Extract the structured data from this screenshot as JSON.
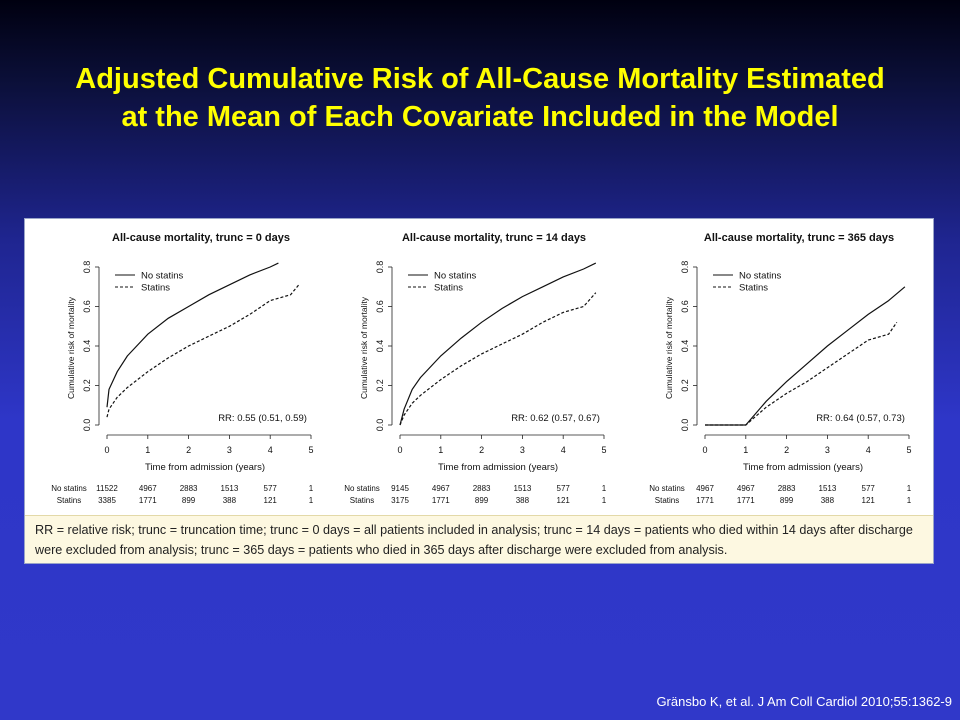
{
  "slide": {
    "title_line1": "Adjusted Cumulative Risk of All-Cause Mortality Estimated",
    "title_line2": "at the Mean of Each Covariate Included in the Model",
    "caption": "RR = relative risk; trunc = truncation time; trunc = 0 days = all patients included in analysis; trunc = 14 days = patients who died within 14 days after discharge were excluded from analysis; trunc = 365 days = patients who died in 365 days after discharge were excluded from analysis.",
    "citation": "Gränsbo K, et al. J Am Coll Cardiol 2010;55:1362-9"
  },
  "colors": {
    "title": "#ffff00",
    "caption_bg": "#fdf8e1",
    "background_top": "#000010",
    "background_bottom": "#3038c9"
  },
  "chart_data": [
    {
      "type": "line",
      "title": "All-cause mortality, trunc = 0 days",
      "xlabel": "Time from admission (years)",
      "ylabel": "Cumulative risk of mortality",
      "xlim": [
        0,
        5
      ],
      "ylim": [
        0,
        0.8
      ],
      "xticks": [
        "0",
        "1",
        "2",
        "3",
        "4",
        "5"
      ],
      "yticks": [
        "0.0",
        "0.2",
        "0.4",
        "0.6",
        "0.8"
      ],
      "legend": "top-left",
      "annotation": "RR: 0.55 (0.51, 0.59)",
      "series": [
        {
          "name": "No statins",
          "style": "solid",
          "x": [
            0,
            0.05,
            0.25,
            0.5,
            1,
            1.5,
            2,
            2.5,
            3,
            3.5,
            4,
            4.2
          ],
          "y": [
            0.09,
            0.18,
            0.27,
            0.35,
            0.46,
            0.54,
            0.6,
            0.66,
            0.71,
            0.76,
            0.8,
            0.82
          ]
        },
        {
          "name": "Statins",
          "style": "dashed",
          "x": [
            0,
            0.05,
            0.25,
            0.5,
            1,
            1.5,
            2,
            2.5,
            3,
            3.5,
            4,
            4.5,
            4.7
          ],
          "y": [
            0.04,
            0.08,
            0.14,
            0.19,
            0.27,
            0.34,
            0.4,
            0.45,
            0.5,
            0.56,
            0.63,
            0.66,
            0.71
          ]
        }
      ],
      "risk_table": {
        "rows": [
          {
            "label": "No statins",
            "values": [
              "11522",
              "4967",
              "2883",
              "1513",
              "577",
              "1"
            ]
          },
          {
            "label": "Statins",
            "values": [
              "3385",
              "1771",
              "899",
              "388",
              "121",
              "1"
            ]
          }
        ]
      }
    },
    {
      "type": "line",
      "title": "All-cause mortality, trunc = 14 days",
      "xlabel": "Time from admission (years)",
      "ylabel": "Cumulative risk of mortality",
      "xlim": [
        0,
        5
      ],
      "ylim": [
        0,
        0.8
      ],
      "xticks": [
        "0",
        "1",
        "2",
        "3",
        "4",
        "5"
      ],
      "yticks": [
        "0.0",
        "0.2",
        "0.4",
        "0.6",
        "0.8"
      ],
      "legend": "top-left",
      "annotation": "RR: 0.62 (0.57, 0.67)",
      "series": [
        {
          "name": "No statins",
          "style": "solid",
          "x": [
            0,
            0.1,
            0.3,
            0.5,
            1,
            1.5,
            2,
            2.5,
            3,
            3.5,
            4,
            4.5,
            4.8
          ],
          "y": [
            0,
            0.08,
            0.18,
            0.24,
            0.35,
            0.44,
            0.52,
            0.59,
            0.65,
            0.7,
            0.75,
            0.79,
            0.82
          ]
        },
        {
          "name": "Statins",
          "style": "dashed",
          "x": [
            0,
            0.1,
            0.3,
            0.5,
            1,
            1.5,
            2,
            2.5,
            3,
            3.5,
            4,
            4.5,
            4.8
          ],
          "y": [
            0,
            0.05,
            0.11,
            0.15,
            0.23,
            0.3,
            0.36,
            0.41,
            0.46,
            0.52,
            0.57,
            0.6,
            0.67
          ]
        }
      ],
      "risk_table": {
        "rows": [
          {
            "label": "No statins",
            "values": [
              "9145",
              "4967",
              "2883",
              "1513",
              "577",
              "1"
            ]
          },
          {
            "label": "Statins",
            "values": [
              "3175",
              "1771",
              "899",
              "388",
              "121",
              "1"
            ]
          }
        ]
      }
    },
    {
      "type": "line",
      "title": "All-cause mortality, trunc = 365 days",
      "xlabel": "Time from admission (years)",
      "ylabel": "Cumulative risk of mortality",
      "xlim": [
        0,
        5
      ],
      "ylim": [
        0,
        0.8
      ],
      "xticks": [
        "0",
        "1",
        "2",
        "3",
        "4",
        "5"
      ],
      "yticks": [
        "0.0",
        "0.2",
        "0.4",
        "0.6",
        "0.8"
      ],
      "legend": "top-left",
      "annotation": "RR: 0.64 (0.57, 0.73)",
      "series": [
        {
          "name": "No statins",
          "style": "solid",
          "x": [
            0,
            1,
            1.5,
            2,
            2.5,
            3,
            3.5,
            4,
            4.5,
            4.9
          ],
          "y": [
            0,
            0,
            0.12,
            0.22,
            0.31,
            0.4,
            0.48,
            0.56,
            0.63,
            0.7
          ]
        },
        {
          "name": "Statins",
          "style": "dashed",
          "x": [
            0,
            1,
            1.5,
            2,
            2.5,
            3,
            3.5,
            4,
            4.5,
            4.7
          ],
          "y": [
            0,
            0,
            0.09,
            0.16,
            0.22,
            0.29,
            0.36,
            0.43,
            0.46,
            0.52
          ]
        }
      ],
      "risk_table": {
        "rows": [
          {
            "label": "No statins",
            "values": [
              "4967",
              "4967",
              "2883",
              "1513",
              "577",
              "1"
            ]
          },
          {
            "label": "Statins",
            "values": [
              "1771",
              "1771",
              "899",
              "388",
              "121",
              "1"
            ]
          }
        ]
      }
    }
  ]
}
